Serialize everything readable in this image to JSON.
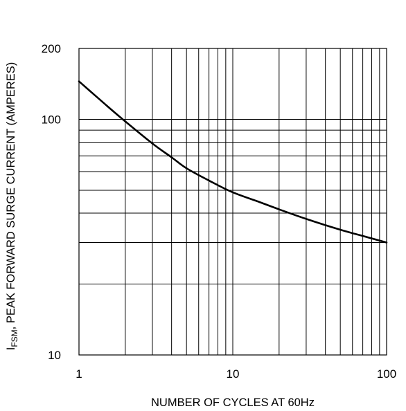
{
  "chart_data": {
    "type": "line",
    "title": "",
    "xlabel": "NUMBER OF CYCLES AT 60Hz",
    "ylabel": {
      "symbol": "I",
      "subscript": "FSM",
      "text": ", PEAK FORWARD SURGE CURRENT (AMPERES)"
    },
    "x_scale": "log",
    "y_scale": "log",
    "xlim": [
      1,
      100
    ],
    "ylim": [
      10,
      200
    ],
    "x_ticks": [
      {
        "value": 1,
        "label": "1"
      },
      {
        "value": 10,
        "label": "10"
      },
      {
        "value": 100,
        "label": "100"
      }
    ],
    "y_ticks": [
      {
        "value": 10,
        "label": "10"
      },
      {
        "value": 100,
        "label": "100"
      },
      {
        "value": 200,
        "label": "200"
      }
    ],
    "x_grid": [
      2,
      3,
      4,
      5,
      6,
      7,
      8,
      9,
      20,
      30,
      40,
      50,
      60,
      70,
      80,
      90
    ],
    "y_grid": [
      20,
      30,
      40,
      50,
      60,
      70,
      80,
      90,
      100
    ],
    "grid": true,
    "legend": "none",
    "series": [
      {
        "x": [
          1,
          1.5,
          2,
          3,
          4,
          5,
          7,
          10,
          15,
          20,
          30,
          50,
          70,
          100
        ],
        "y": [
          145,
          115,
          98,
          79,
          69,
          62,
          55,
          49,
          44.5,
          41.5,
          37.8,
          34,
          32,
          30
        ]
      }
    ]
  }
}
